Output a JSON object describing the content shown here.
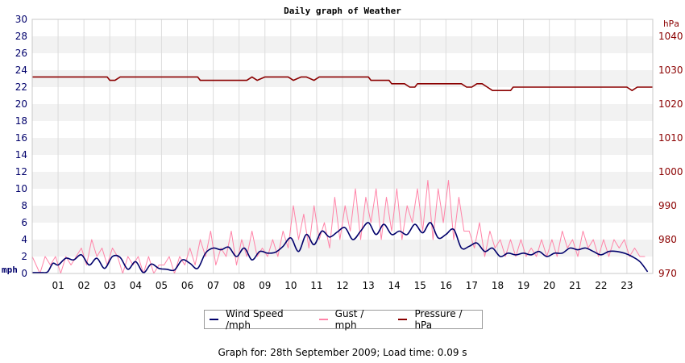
{
  "chart_data": {
    "type": "line",
    "title": "Daily graph of Weather",
    "left_axis": {
      "unit_label": "mph",
      "range": [
        0,
        30
      ],
      "ticks": [
        "0",
        "2",
        "4",
        "6",
        "8",
        "10",
        "12",
        "14",
        "16",
        "18",
        "20",
        "22",
        "24",
        "26",
        "28",
        "30"
      ],
      "color": "#00006b"
    },
    "right_axis": {
      "unit_label": "hPa",
      "range": [
        970,
        1045
      ],
      "ticks": [
        "970",
        "980",
        "990",
        "1000",
        "1010",
        "1020",
        "1030",
        "1040"
      ],
      "color": "#8b0000"
    },
    "x_axis": {
      "range_hours": [
        0,
        24
      ],
      "ticks": [
        "01",
        "02",
        "03",
        "04",
        "05",
        "06",
        "07",
        "08",
        "09",
        "10",
        "11",
        "12",
        "13",
        "14",
        "15",
        "16",
        "17",
        "18",
        "19",
        "20",
        "21",
        "22",
        "23"
      ]
    },
    "grid": true,
    "band_colors": [
      "#ffffff",
      "#f2f2f2"
    ],
    "series": [
      {
        "name": "Wind Speed /mph",
        "axis": "left",
        "color": "#00006b",
        "x": [
          0,
          0.4,
          0.6,
          0.8,
          1.0,
          1.3,
          1.6,
          1.9,
          2.2,
          2.5,
          2.8,
          3.1,
          3.4,
          3.7,
          4.0,
          4.3,
          4.6,
          4.9,
          5.2,
          5.5,
          5.8,
          6.1,
          6.4,
          6.7,
          7.0,
          7.3,
          7.6,
          7.9,
          8.2,
          8.5,
          8.8,
          9.1,
          9.4,
          9.7,
          10.0,
          10.3,
          10.6,
          10.9,
          11.2,
          11.5,
          11.8,
          12.1,
          12.4,
          12.7,
          13.0,
          13.3,
          13.6,
          13.9,
          14.2,
          14.5,
          14.8,
          15.1,
          15.4,
          15.7,
          16.0,
          16.3,
          16.6,
          16.9,
          17.2,
          17.5,
          17.8,
          18.1,
          18.4,
          18.7,
          19.0,
          19.3,
          19.6,
          19.9,
          20.2,
          20.5,
          20.8,
          21.1,
          21.4,
          21.7,
          22.0,
          22.3,
          22.6,
          22.9,
          23.2,
          23.5,
          23.8
        ],
        "y": [
          0.1,
          0.1,
          0.2,
          1.2,
          1.0,
          1.8,
          1.6,
          2.2,
          1.0,
          1.8,
          0.6,
          2.0,
          1.9,
          0.5,
          1.4,
          0.1,
          1.1,
          0.6,
          0.5,
          0.4,
          1.6,
          1.2,
          0.6,
          2.4,
          3.0,
          2.8,
          3.1,
          2.0,
          3.0,
          1.6,
          2.6,
          2.4,
          2.5,
          3.2,
          4.2,
          2.6,
          4.6,
          3.4,
          5.0,
          4.3,
          4.9,
          5.4,
          4.0,
          5.0,
          6.0,
          4.6,
          5.8,
          4.6,
          5.0,
          4.6,
          5.8,
          4.8,
          6.0,
          4.2,
          4.6,
          5.2,
          3.0,
          3.2,
          3.6,
          2.6,
          3.0,
          2.0,
          2.4,
          2.2,
          2.4,
          2.2,
          2.6,
          2.0,
          2.4,
          2.4,
          3.0,
          2.8,
          3.0,
          2.6,
          2.2,
          2.6,
          2.6,
          2.4,
          2.0,
          1.4,
          0.2
        ]
      },
      {
        "name": "Gust / mph",
        "axis": "left",
        "color": "#ff84a8",
        "x": [
          0,
          0.3,
          0.5,
          0.7,
          0.9,
          1.1,
          1.3,
          1.5,
          1.7,
          1.9,
          2.1,
          2.3,
          2.5,
          2.7,
          2.9,
          3.1,
          3.3,
          3.5,
          3.7,
          3.9,
          4.1,
          4.3,
          4.5,
          4.7,
          4.9,
          5.1,
          5.3,
          5.5,
          5.7,
          5.9,
          6.1,
          6.3,
          6.5,
          6.7,
          6.9,
          7.1,
          7.3,
          7.5,
          7.7,
          7.9,
          8.1,
          8.3,
          8.5,
          8.7,
          8.9,
          9.1,
          9.3,
          9.5,
          9.7,
          9.9,
          10.1,
          10.3,
          10.5,
          10.7,
          10.9,
          11.1,
          11.3,
          11.5,
          11.7,
          11.9,
          12.1,
          12.3,
          12.5,
          12.7,
          12.9,
          13.1,
          13.3,
          13.5,
          13.7,
          13.9,
          14.1,
          14.3,
          14.5,
          14.7,
          14.9,
          15.1,
          15.3,
          15.5,
          15.7,
          15.9,
          16.1,
          16.3,
          16.5,
          16.7,
          16.9,
          17.1,
          17.3,
          17.5,
          17.7,
          17.9,
          18.1,
          18.3,
          18.5,
          18.7,
          18.9,
          19.1,
          19.3,
          19.5,
          19.7,
          19.9,
          20.1,
          20.3,
          20.5,
          20.7,
          20.9,
          21.1,
          21.3,
          21.5,
          21.7,
          21.9,
          22.1,
          22.3,
          22.5,
          22.7,
          22.9,
          23.1,
          23.3,
          23.5,
          23.7
        ],
        "y": [
          2,
          0,
          2,
          1,
          2,
          0,
          2,
          1,
          2,
          3,
          1,
          4,
          2,
          3,
          1,
          3,
          2,
          0,
          2,
          1,
          2,
          0,
          2,
          0,
          1,
          1,
          2,
          0,
          2,
          1,
          3,
          1,
          4,
          2,
          5,
          1,
          3,
          2,
          5,
          1,
          4,
          2,
          5,
          2,
          3,
          2,
          4,
          2,
          5,
          3,
          8,
          4,
          7,
          3,
          8,
          4,
          6,
          3,
          9,
          4,
          8,
          5,
          10,
          4,
          9,
          6,
          10,
          4,
          9,
          5,
          10,
          4,
          8,
          6,
          10,
          5,
          11,
          4,
          10,
          6,
          11,
          4,
          9,
          5,
          5,
          3,
          6,
          2,
          5,
          3,
          4,
          2,
          4,
          2,
          4,
          2,
          3,
          2,
          4,
          2,
          4,
          2,
          5,
          3,
          4,
          2,
          5,
          3,
          4,
          2,
          4,
          2,
          4,
          3,
          4,
          2,
          3,
          2,
          2
        ]
      },
      {
        "name": "Pressure / hPa",
        "axis": "right",
        "color": "#8b0000",
        "x": [
          0,
          2.9,
          3.0,
          3.2,
          3.4,
          6.4,
          6.5,
          8.3,
          8.5,
          8.7,
          9.0,
          9.9,
          10.1,
          10.4,
          10.6,
          10.9,
          11.1,
          11.4,
          13.0,
          13.1,
          13.8,
          13.9,
          14.4,
          14.6,
          14.8,
          14.9,
          16.6,
          16.8,
          17.0,
          17.2,
          17.4,
          17.6,
          17.8,
          18.0,
          18.5,
          18.6,
          23.0,
          23.2,
          23.4,
          24.0
        ],
        "y": [
          1028,
          1028,
          1027,
          1027,
          1028,
          1028,
          1027,
          1027,
          1028,
          1027,
          1028,
          1028,
          1027,
          1028,
          1028,
          1027,
          1028,
          1028,
          1028,
          1027,
          1027,
          1026,
          1026,
          1025,
          1025,
          1026,
          1026,
          1025,
          1025,
          1026,
          1026,
          1025,
          1024,
          1024,
          1024,
          1025,
          1025,
          1024,
          1025,
          1025
        ]
      }
    ]
  },
  "legend": {
    "items": [
      "Wind Speed /mph",
      "Gust / mph",
      "Pressure / hPa"
    ],
    "colors": [
      "#00006b",
      "#ff84a8",
      "#8b0000"
    ]
  },
  "footer": {
    "text": "Graph for: 28th September 2009; Load time: 0.09 s"
  }
}
